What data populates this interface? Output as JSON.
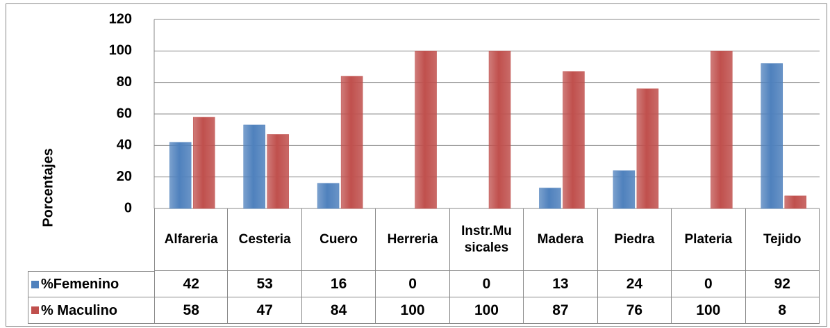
{
  "chart_data": {
    "type": "bar",
    "y_label": "Porcentajes",
    "categories": [
      "Alfareria",
      "Cesteria",
      "Cuero",
      "Herreria",
      "Instr.Musicales",
      "Madera",
      "Piedra",
      "Plateria",
      "Tejido"
    ],
    "series": [
      {
        "name": "%Femenino",
        "color": "#4f81bd",
        "values": [
          42,
          53,
          16,
          0,
          0,
          13,
          24,
          0,
          92
        ]
      },
      {
        "name": "% Maculino",
        "color": "#c0504d",
        "values": [
          58,
          47,
          84,
          100,
          100,
          87,
          76,
          100,
          8
        ]
      }
    ],
    "ylim": [
      0,
      120
    ],
    "yticks": [
      0,
      20,
      40,
      60,
      80,
      100,
      120
    ],
    "grid": true,
    "data_table": true
  }
}
